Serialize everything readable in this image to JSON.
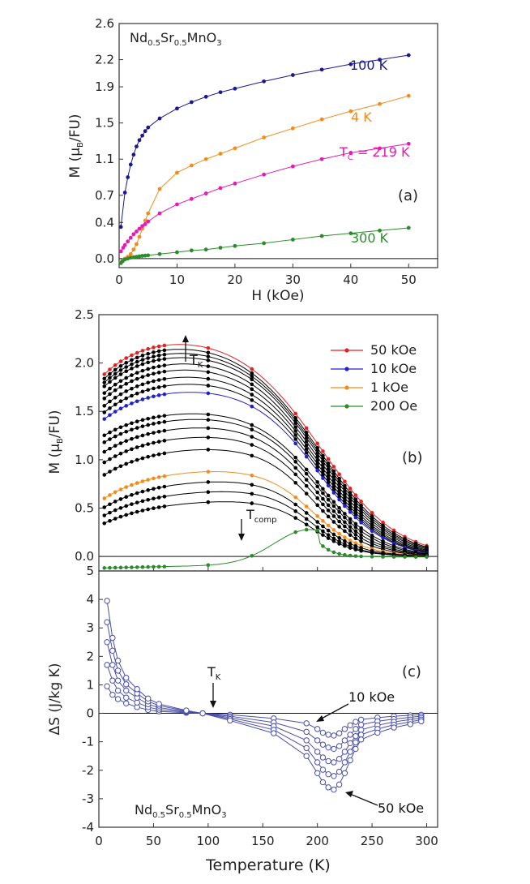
{
  "chart_data": [
    {
      "id": "a",
      "type": "line",
      "panel_label": "(a)",
      "compound": {
        "pre": "Nd",
        "s1": "0.5",
        "mid": "Sr",
        "s2": "0.5",
        "post": "MnO",
        "s3": "3"
      },
      "xlabel": "H (kOe)",
      "ylabel": {
        "pre": "M (",
        "mu": "μ",
        "sub": "B",
        "post": "/FU)"
      },
      "xlim": [
        0,
        55
      ],
      "ylim": [
        -0.1,
        2.6
      ],
      "xticks": [
        "0",
        "10",
        "20",
        "30",
        "40",
        "50"
      ],
      "yticks": [
        "0.0",
        "0.4",
        "0.7",
        "1.1",
        "1.5",
        "1.9",
        "2.2",
        "2.6"
      ],
      "ytick_values": [
        0.0,
        0.4,
        0.7,
        1.1,
        1.5,
        1.9,
        2.2,
        2.6
      ],
      "series": [
        {
          "name": "100 K",
          "color": "#1a1a8c",
          "x": [
            0.3,
            1,
            1.5,
            2,
            2.5,
            3,
            3.5,
            4,
            4.5,
            5,
            7,
            10,
            12.5,
            15,
            17.5,
            20,
            25,
            30,
            35,
            40,
            45,
            50
          ],
          "y": [
            0.35,
            0.73,
            0.9,
            1.04,
            1.15,
            1.24,
            1.31,
            1.36,
            1.41,
            1.45,
            1.55,
            1.66,
            1.73,
            1.79,
            1.84,
            1.88,
            1.96,
            2.03,
            2.09,
            2.15,
            2.2,
            2.25
          ]
        },
        {
          "name": "4 K",
          "color": "#f28c1a",
          "x": [
            0.3,
            0.6,
            1,
            1.5,
            2,
            2.5,
            3,
            3.5,
            4,
            4.5,
            5,
            7,
            10,
            12.5,
            15,
            17.5,
            20,
            25,
            30,
            35,
            40,
            45,
            50
          ],
          "y": [
            -0.04,
            -0.02,
            0.0,
            0.02,
            0.05,
            0.1,
            0.16,
            0.24,
            0.33,
            0.42,
            0.5,
            0.77,
            0.95,
            1.03,
            1.1,
            1.16,
            1.22,
            1.34,
            1.44,
            1.54,
            1.63,
            1.71,
            1.8
          ]
        },
        {
          "name": "T_C = 219 K",
          "color": "#e61ab4",
          "x": [
            0.3,
            0.7,
            1,
            1.5,
            2,
            2.5,
            3,
            3.5,
            4,
            4.5,
            5,
            7,
            10,
            12.5,
            15,
            17.5,
            20,
            25,
            30,
            35,
            40,
            45,
            50
          ],
          "y": [
            0.08,
            0.12,
            0.15,
            0.19,
            0.23,
            0.27,
            0.3,
            0.33,
            0.36,
            0.38,
            0.41,
            0.5,
            0.6,
            0.66,
            0.72,
            0.78,
            0.83,
            0.93,
            1.02,
            1.1,
            1.17,
            1.22,
            1.27
          ]
        },
        {
          "name": "300 K",
          "color": "#2b8c2b",
          "x": [
            0.3,
            0.6,
            1,
            1.5,
            2,
            2.5,
            3,
            3.5,
            4,
            4.5,
            5,
            7,
            10,
            12.5,
            15,
            17.5,
            20,
            25,
            30,
            35,
            40,
            45,
            50
          ],
          "y": [
            -0.05,
            -0.03,
            -0.01,
            0.0,
            0.01,
            0.015,
            0.02,
            0.025,
            0.03,
            0.033,
            0.036,
            0.05,
            0.07,
            0.09,
            0.1,
            0.12,
            0.14,
            0.17,
            0.21,
            0.25,
            0.28,
            0.31,
            0.34
          ]
        }
      ],
      "annotations": {
        "k100": "100 K",
        "k4": "4 K",
        "tc": {
          "main": "T",
          "sub": "C",
          "rest": " = 219 K"
        },
        "k300": "300 K"
      }
    },
    {
      "id": "b",
      "type": "line",
      "panel_label": "(b)",
      "xlabel": "",
      "ylabel": {
        "pre": "M (",
        "mu": "μ",
        "sub": "B",
        "post": "/FU)"
      },
      "xlim": [
        0,
        310
      ],
      "ylim": [
        -0.15,
        2.5
      ],
      "yticks": [
        "0.0",
        "0.5",
        "1.0",
        "1.5",
        "2.0",
        "2.5"
      ],
      "ytick_values": [
        0.0,
        0.5,
        1.0,
        1.5,
        2.0,
        2.5
      ],
      "x": [
        5,
        10,
        15,
        20,
        25,
        30,
        35,
        40,
        45,
        50,
        55,
        60,
        100,
        140,
        180,
        190,
        200,
        205,
        210,
        215,
        220,
        225,
        230,
        235,
        240,
        250,
        260,
        270,
        280,
        290,
        300
      ],
      "series": [
        {
          "name": "50 kOe",
          "color": "#e32222",
          "params": {
            "s": 2.3,
            "a": 0.5,
            "tk": 65,
            "h": 0.005,
            "tc": 212,
            "w": 36
          }
        },
        {
          "name": "",
          "color": "#000000",
          "params": {
            "s": 2.24,
            "a": 0.5,
            "tk": 66,
            "h": 0.01,
            "tc": 210,
            "w": 35
          }
        },
        {
          "name": "",
          "color": "#000000",
          "params": {
            "s": 2.18,
            "a": 0.5,
            "tk": 67,
            "h": 0.02,
            "tc": 209,
            "w": 34
          }
        },
        {
          "name": "",
          "color": "#000000",
          "params": {
            "s": 2.12,
            "a": 0.5,
            "tk": 68,
            "h": 0.03,
            "tc": 208,
            "w": 33
          }
        },
        {
          "name": "",
          "color": "#000000",
          "params": {
            "s": 2.04,
            "a": 0.52,
            "tk": 69,
            "h": 0.04,
            "tc": 207,
            "w": 32
          }
        },
        {
          "name": "",
          "color": "#000000",
          "params": {
            "s": 1.96,
            "a": 0.52,
            "tk": 70,
            "h": 0.05,
            "tc": 206,
            "w": 31
          }
        },
        {
          "name": "",
          "color": "#000000",
          "params": {
            "s": 1.86,
            "a": 0.54,
            "tk": 72,
            "h": 0.07,
            "tc": 205,
            "w": 30
          }
        },
        {
          "name": "",
          "color": "#000000",
          "params": {
            "s": 1.76,
            "a": 0.55,
            "tk": 74,
            "h": 0.09,
            "tc": 204,
            "w": 29
          }
        },
        {
          "name": "10 kOe",
          "color": "#2020d0",
          "params": {
            "s": 1.64,
            "a": 0.55,
            "tk": 76,
            "h": 0.12,
            "tc": 203,
            "w": 28
          }
        },
        {
          "name": "",
          "color": "#000000",
          "params": {
            "s": 1.42,
            "a": 0.45,
            "tk": 88,
            "h": 0.1,
            "tc": 202,
            "w": 27
          }
        },
        {
          "name": "",
          "color": "#000000",
          "params": {
            "s": 1.38,
            "a": 0.48,
            "tk": 92,
            "h": 0.08,
            "tc": 201,
            "w": 26
          }
        },
        {
          "name": "",
          "color": "#000000",
          "params": {
            "s": 1.31,
            "a": 0.52,
            "tk": 96,
            "h": 0.06,
            "tc": 200,
            "w": 25
          }
        },
        {
          "name": "",
          "color": "#000000",
          "params": {
            "s": 1.22,
            "a": 0.58,
            "tk": 100,
            "h": 0.05,
            "tc": 199,
            "w": 24
          }
        },
        {
          "name": "",
          "color": "#000000",
          "params": {
            "s": 1.1,
            "a": 0.64,
            "tk": 105,
            "h": 0.04,
            "tc": 198,
            "w": 23
          }
        },
        {
          "name": "1 kOe",
          "color": "#f28c1a",
          "params": {
            "s": 0.88,
            "a": 0.86,
            "tk": 115,
            "h": 0.03,
            "tc": 197,
            "w": 22
          }
        },
        {
          "name": "",
          "color": "#000000",
          "params": {
            "s": 0.78,
            "a": 0.88,
            "tk": 125,
            "h": 0.02,
            "tc": 196,
            "w": 21
          }
        },
        {
          "name": "",
          "color": "#000000",
          "params": {
            "s": 0.68,
            "a": 0.9,
            "tk": 135,
            "h": 0.015,
            "tc": 195,
            "w": 20
          }
        },
        {
          "name": "",
          "color": "#000000",
          "params": {
            "s": 0.58,
            "a": 0.93,
            "tk": 145,
            "h": 0.01,
            "tc": 195,
            "w": 20
          }
        },
        {
          "name": "200 Oe",
          "color": "#2b8c2b",
          "params": {
            "s": 0.25,
            "a": 1.35,
            "tk": 160,
            "h": 0.0,
            "tc": 196,
            "w": 18
          }
        }
      ],
      "legend": [
        "50 kOe",
        "10 kOe",
        "1 kOe",
        "200 Oe"
      ],
      "annotations": {
        "tk": {
          "main": "T",
          "sub": "K"
        },
        "tcomp": {
          "main": "T",
          "sub": "comp"
        }
      }
    },
    {
      "id": "c",
      "type": "line",
      "panel_label": "(c)",
      "compound": {
        "pre": "Nd",
        "s1": "0.5",
        "mid": "Sr",
        "s2": "0.5",
        "post": "MnO",
        "s3": "3"
      },
      "xlabel": "Temperature (K)",
      "ylabel": "ΔS (J/kg K)",
      "xlim": [
        0,
        310
      ],
      "ylim": [
        -4,
        5
      ],
      "xticks": [
        "0",
        "50",
        "100",
        "150",
        "200",
        "250",
        "300"
      ],
      "yticks": [
        "5",
        "4",
        "3",
        "2",
        "1",
        "0",
        "-1",
        "-2",
        "-3",
        "-4"
      ],
      "ytick_values": [
        5,
        4,
        3,
        2,
        1,
        0,
        -1,
        -2,
        -3,
        -4
      ],
      "x": [
        7.5,
        12.5,
        17.5,
        25,
        35,
        45,
        55,
        80,
        95,
        120,
        160,
        190,
        200,
        205,
        210,
        215,
        220,
        225,
        230,
        235,
        240,
        255,
        270,
        285,
        295
      ],
      "color": "#4a4fa8",
      "series": [
        {
          "name": "10 kOe",
          "values": [
            0.95,
            0.65,
            0.5,
            0.35,
            0.22,
            0.12,
            0.07,
            0.02,
            0.0,
            -0.05,
            -0.18,
            -0.35,
            -0.55,
            -0.68,
            -0.75,
            -0.78,
            -0.7,
            -0.55,
            -0.42,
            -0.3,
            -0.22,
            -0.15,
            -0.1,
            -0.07,
            -0.05
          ]
        },
        {
          "name": "",
          "values": [
            1.7,
            1.15,
            0.8,
            0.55,
            0.38,
            0.22,
            0.13,
            0.04,
            0.0,
            -0.1,
            -0.32,
            -0.65,
            -0.95,
            -1.1,
            -1.2,
            -1.25,
            -1.15,
            -0.95,
            -0.75,
            -0.55,
            -0.4,
            -0.28,
            -0.2,
            -0.14,
            -0.1
          ]
        },
        {
          "name": "",
          "values": [
            2.5,
            1.7,
            1.15,
            0.8,
            0.55,
            0.32,
            0.2,
            0.06,
            0.0,
            -0.15,
            -0.45,
            -0.95,
            -1.35,
            -1.55,
            -1.68,
            -1.72,
            -1.6,
            -1.35,
            -1.05,
            -0.8,
            -0.58,
            -0.42,
            -0.3,
            -0.22,
            -0.16
          ]
        },
        {
          "name": "",
          "values": [
            3.2,
            2.2,
            1.5,
            1.02,
            0.7,
            0.42,
            0.27,
            0.08,
            0.0,
            -0.2,
            -0.58,
            -1.22,
            -1.72,
            -1.98,
            -2.14,
            -2.2,
            -2.05,
            -1.72,
            -1.35,
            -1.02,
            -0.75,
            -0.55,
            -0.4,
            -0.3,
            -0.22
          ]
        },
        {
          "name": "50 kOe",
          "values": [
            3.95,
            2.65,
            1.85,
            1.25,
            0.85,
            0.52,
            0.33,
            0.1,
            0.0,
            -0.25,
            -0.7,
            -1.5,
            -2.1,
            -2.42,
            -2.6,
            -2.68,
            -2.5,
            -2.1,
            -1.65,
            -1.25,
            -0.92,
            -0.68,
            -0.5,
            -0.38,
            -0.28
          ]
        }
      ],
      "annotations": {
        "tk": {
          "main": "T",
          "sub": "K"
        },
        "low": "10 kOe",
        "high": "50 kOe"
      }
    }
  ]
}
